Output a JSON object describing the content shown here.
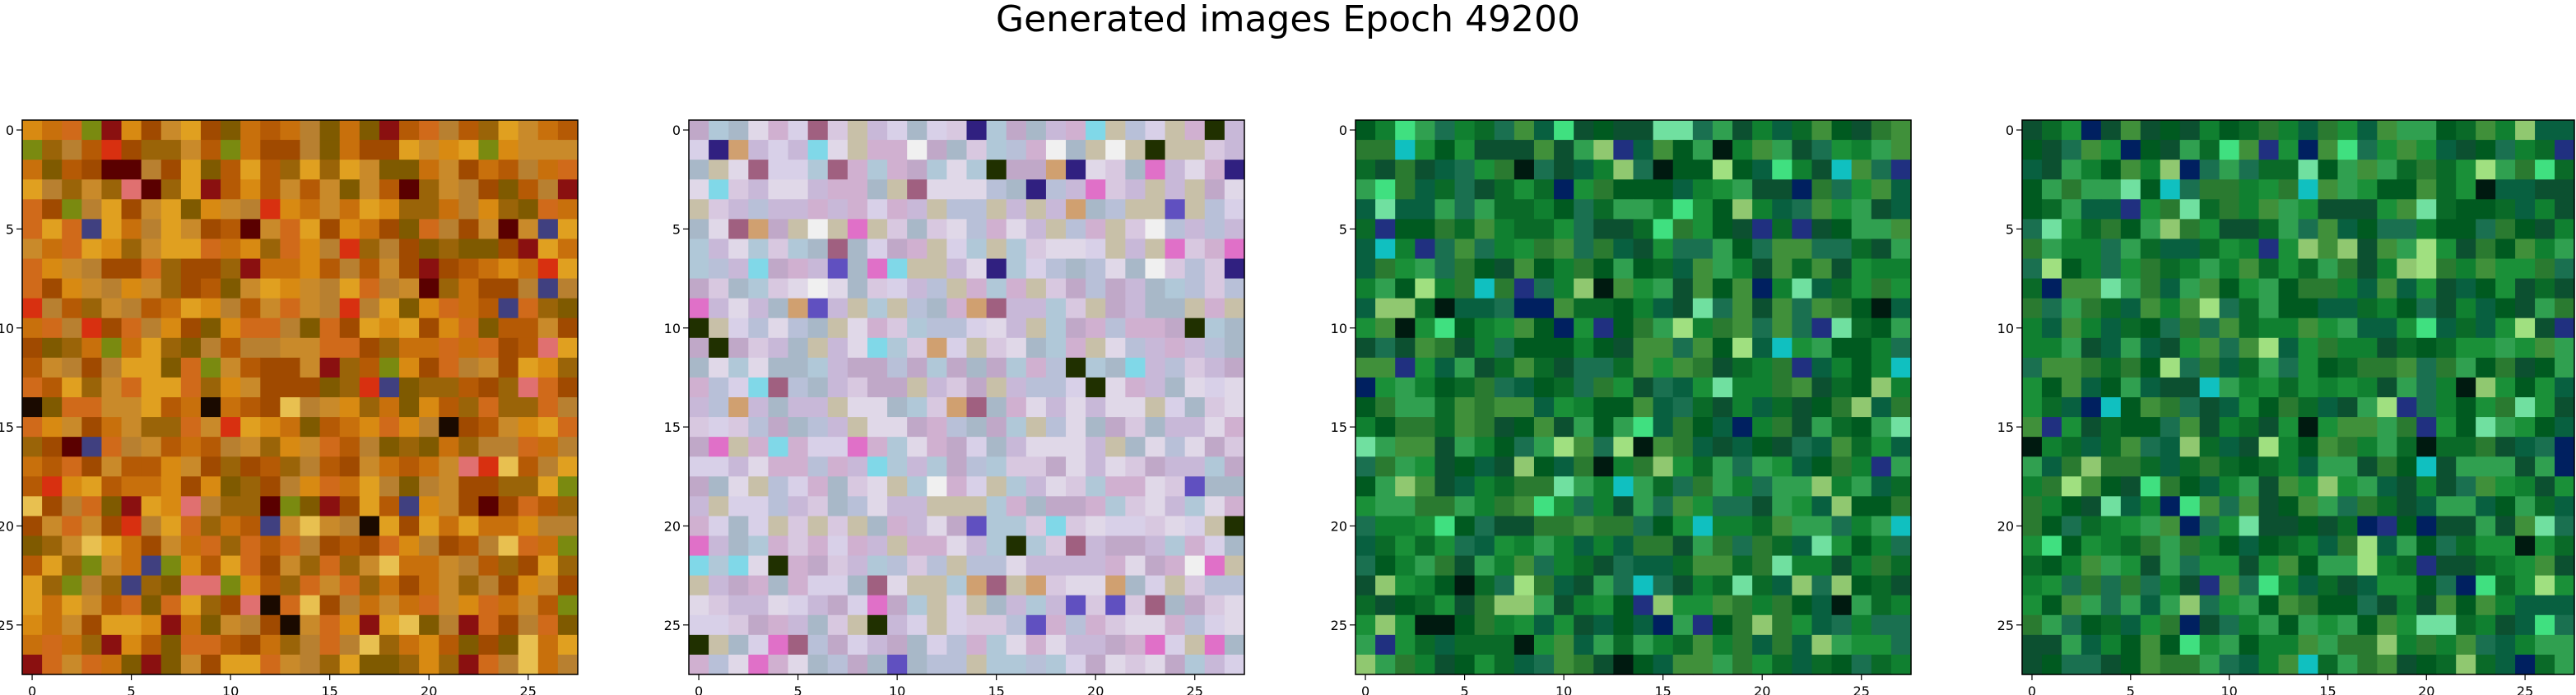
{
  "figure": {
    "title": "Generated images Epoch 49200"
  },
  "palette": {
    "orange": [
      "#c8700c",
      "#b55a05",
      "#d88a12",
      "#a04a00",
      "#e0a020",
      "#9a6408",
      "#c98a2a",
      "#7f5a00",
      "#d06a1a",
      "#b88030"
    ],
    "orange_rare": [
      "#5a0000",
      "#8a1010",
      "#1a0a00",
      "#e8c050",
      "#d83010",
      "#7a8a10",
      "#e07070",
      "#404080"
    ],
    "pastel": [
      "#c8b8d8",
      "#b8c0d8",
      "#d8c8e0",
      "#c0a8c8",
      "#d8d0e8",
      "#b0c8d8",
      "#c8c0a8",
      "#e0d8e8",
      "#a8b8c8",
      "#d0b0d0"
    ],
    "pastel_rare": [
      "#e070c8",
      "#6050c0",
      "#302080",
      "#203000",
      "#80d8e8",
      "#d0a070",
      "#a06080",
      "#f0f0f0"
    ],
    "green": [
      "#108030",
      "#0a6a28",
      "#1a9038",
      "#2a7a30",
      "#086040",
      "#30a050",
      "#005a20",
      "#1a7050",
      "#40903a",
      "#0c5030"
    ],
    "green_rare": [
      "#001a10",
      "#002060",
      "#40e080",
      "#90c870",
      "#10c0c0",
      "#203080",
      "#70e0a0",
      "#a0e080"
    ]
  },
  "chart_data": [
    {
      "type": "heatmap",
      "title": "",
      "rows": 28,
      "cols": 28,
      "xlim": [
        -0.5,
        27.5
      ],
      "ylim": [
        27.5,
        -0.5
      ],
      "xticks": [
        0,
        5,
        10,
        15,
        20,
        25
      ],
      "yticks": [
        0,
        5,
        10,
        15,
        20,
        25
      ],
      "grid": false,
      "colormap": "orange",
      "accent": "orange_rare",
      "seed": 11
    },
    {
      "type": "heatmap",
      "title": "",
      "rows": 28,
      "cols": 28,
      "xlim": [
        -0.5,
        27.5
      ],
      "ylim": [
        27.5,
        -0.5
      ],
      "xticks": [
        0,
        5,
        10,
        15,
        20,
        25
      ],
      "yticks": [
        0,
        5,
        10,
        15,
        20,
        25
      ],
      "grid": false,
      "colormap": "pastel",
      "accent": "pastel_rare",
      "seed": 23
    },
    {
      "type": "heatmap",
      "title": "",
      "rows": 28,
      "cols": 28,
      "xlim": [
        -0.5,
        27.5
      ],
      "ylim": [
        27.5,
        -0.5
      ],
      "xticks": [
        0,
        5,
        10,
        15,
        20,
        25
      ],
      "yticks": [
        0,
        5,
        10,
        15,
        20,
        25
      ],
      "grid": false,
      "colormap": "green",
      "accent": "green_rare",
      "seed": 37
    },
    {
      "type": "heatmap",
      "title": "",
      "rows": 28,
      "cols": 28,
      "xlim": [
        -0.5,
        27.5
      ],
      "ylim": [
        27.5,
        -0.5
      ],
      "xticks": [
        0,
        5,
        10,
        15,
        20,
        25
      ],
      "yticks": [
        0,
        5,
        10,
        15,
        20,
        25
      ],
      "grid": false,
      "colormap": "green",
      "accent": "green_rare",
      "seed": 41
    }
  ]
}
